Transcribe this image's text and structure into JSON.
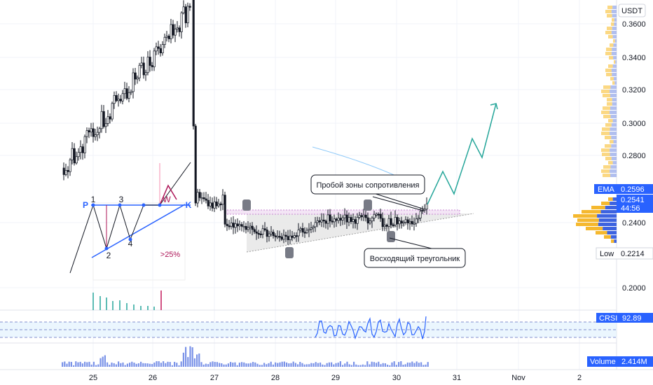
{
  "currency": "USDT",
  "price_axis": {
    "ticks": [
      "0.3600",
      "0.3400",
      "0.3200",
      "0.3000",
      "0.2800",
      "0.2400",
      "0.2000"
    ],
    "badges": {
      "ema": {
        "label": "EMA",
        "value": "0.2596",
        "color": "#2962ff"
      },
      "last": {
        "value": "0.2541",
        "countdown": "44:56",
        "color": "#2962ff"
      },
      "low": {
        "label": "Low",
        "value": "0.2214"
      },
      "crsi": {
        "label": "CRSI",
        "value": "92.89",
        "color": "#2962ff"
      },
      "volume": {
        "label": "Volume",
        "value": "2.414M",
        "color": "#2962ff"
      }
    }
  },
  "time_axis": {
    "labels": [
      "25",
      "26",
      "27",
      "28",
      "29",
      "30",
      "31",
      "Nov",
      "2"
    ]
  },
  "pattern_inset": {
    "points": [
      "P",
      "1",
      "2",
      "3",
      "4",
      "W",
      "K"
    ],
    "note": ">25%"
  },
  "annotations": {
    "breakout": "Пробой зоны сопротивления",
    "triangle": "Восходящий треугольник"
  },
  "colors": {
    "up": "#ffffff",
    "down": "#131722",
    "accent": "#2962ff",
    "projection": "#26a69a",
    "triangle_fill": "#e0e0e0"
  },
  "chart_data": {
    "type": "candlestick",
    "price_ylim": [
      0.19,
      0.375
    ],
    "ema_last": 0.2596,
    "last_price": 0.2541,
    "low": 0.2214,
    "crsi_last": 92.89,
    "volume_last": "2.414M"
  }
}
